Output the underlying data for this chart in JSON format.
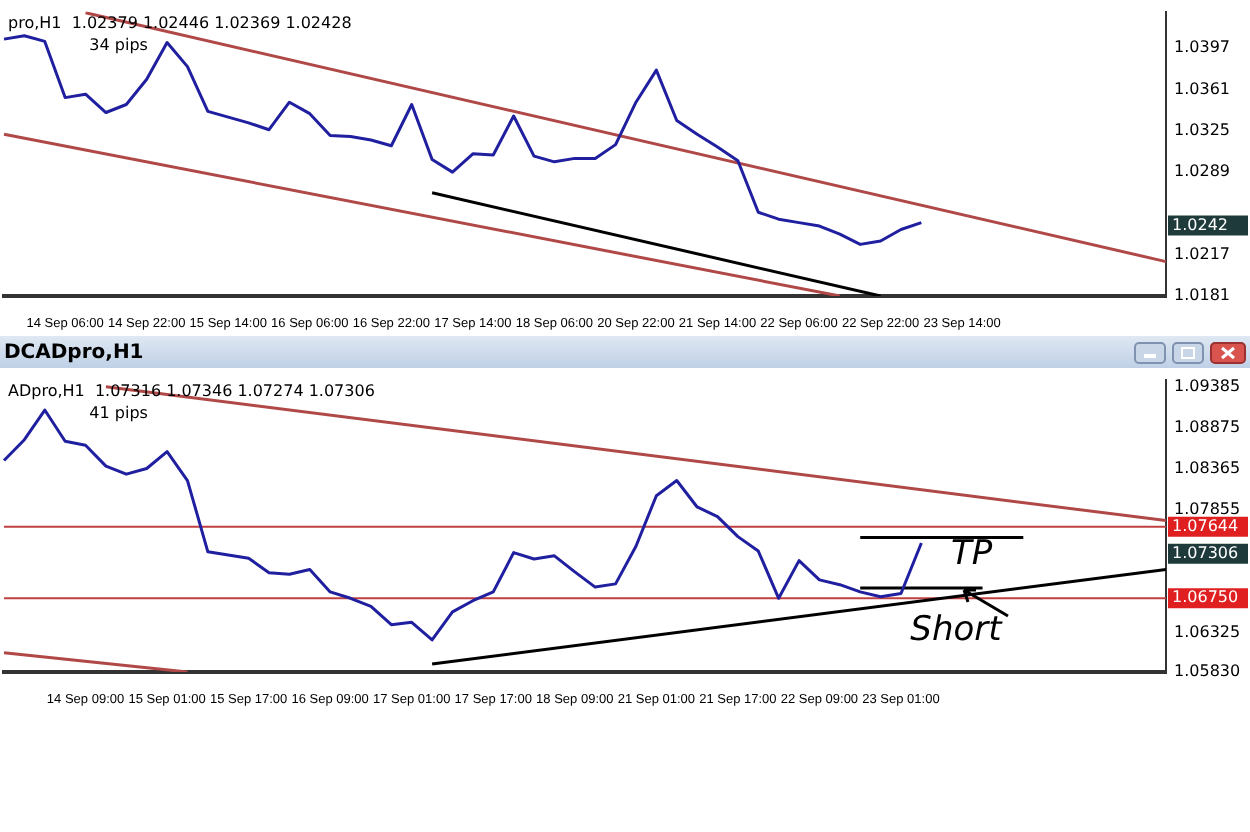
{
  "chart_data": [
    {
      "type": "line",
      "subtitle": "pro,H1  1.02379 1.02446 1.02369 1.02428",
      "marker": "none",
      "categories": [
        null,
        null,
        null,
        "14 Sep 06:00",
        null,
        null,
        null,
        "14 Sep 22:00",
        null,
        null,
        null,
        "15 Sep 14:00",
        null,
        null,
        null,
        "16 Sep 06:00",
        null,
        null,
        null,
        "16 Sep 22:00",
        null,
        null,
        null,
        "17 Sep 14:00",
        null,
        null,
        null,
        "18 Sep 06:00",
        null,
        null,
        null,
        "20 Sep 22:00",
        null,
        null,
        null,
        "21 Sep 14:00",
        null,
        null,
        null,
        "22 Sep 06:00",
        null,
        null,
        null,
        "22 Sep 22:00",
        null,
        null,
        null,
        "23 Sep 14:00",
        null,
        null,
        null,
        null,
        null,
        null,
        null,
        null,
        null,
        null
      ],
      "ylim": [
        1.0181,
        1.0429
      ],
      "yticks": [
        1.0181,
        1.0217,
        1.0289,
        1.0325,
        1.0361,
        1.0397
      ],
      "series": [
        {
          "color": "#1f1fa0",
          "values": [
            1.0405,
            1.0408,
            1.0403,
            1.0354,
            1.0357,
            1.0341,
            1.0348,
            1.037,
            1.0402,
            1.0381,
            1.0342,
            1.0337,
            1.0332,
            1.0326,
            1.035,
            1.034,
            1.0321,
            1.032,
            1.0317,
            1.0312,
            1.0348,
            1.03,
            1.0289,
            1.0305,
            1.0304,
            1.0338,
            1.0303,
            1.0298,
            1.0301,
            1.0301,
            1.0313,
            1.035,
            1.0378,
            1.0334,
            1.0322,
            1.0311,
            1.0299,
            1.0254,
            1.0248,
            1.0245,
            1.0242,
            1.0235,
            1.0226,
            1.0229,
            1.0239,
            1.0245,
            null,
            null,
            null,
            null,
            null,
            null,
            null,
            null,
            null,
            null,
            null,
            null
          ]
        },
        {
          "color": "#b04848",
          "values": [
            null,
            null,
            null,
            null,
            1.0428,
            null,
            null,
            null,
            null,
            null,
            null,
            null,
            null,
            null,
            null,
            null,
            null,
            null,
            null,
            null,
            null,
            null,
            null,
            null,
            null,
            null,
            null,
            null,
            null,
            null,
            null,
            null,
            null,
            null,
            null,
            null,
            null,
            null,
            null,
            null,
            null,
            null,
            null,
            null,
            null,
            null,
            null,
            null,
            null,
            null,
            null,
            null,
            null,
            null,
            null,
            null,
            null,
            1.0211
          ]
        },
        {
          "color": "#b04848",
          "values": [
            1.0322,
            null,
            null,
            null,
            null,
            null,
            null,
            null,
            null,
            null,
            null,
            null,
            null,
            null,
            null,
            null,
            null,
            null,
            null,
            null,
            null,
            null,
            null,
            null,
            null,
            null,
            null,
            null,
            null,
            null,
            null,
            null,
            null,
            null,
            null,
            null,
            null,
            null,
            null,
            null,
            null,
            1.0181,
            null,
            null,
            null,
            null,
            null,
            null,
            null,
            null,
            null,
            null,
            null,
            null,
            null,
            null,
            null,
            null
          ]
        },
        {
          "color": "#000000",
          "values": [
            null,
            null,
            null,
            null,
            null,
            null,
            null,
            null,
            null,
            null,
            null,
            null,
            null,
            null,
            null,
            null,
            null,
            null,
            null,
            null,
            null,
            1.0271,
            null,
            null,
            null,
            null,
            null,
            null,
            null,
            null,
            null,
            null,
            null,
            null,
            null,
            null,
            null,
            null,
            null,
            null,
            null,
            null,
            null,
            1.0181,
            null,
            null,
            null,
            null,
            null,
            null,
            null,
            null,
            null,
            null,
            null,
            null,
            null,
            null
          ]
        }
      ],
      "annotations": [
        "34 pips",
        "1.0242"
      ]
    },
    {
      "type": "line",
      "title": "DCADpro,H1",
      "subtitle": "ADpro,H1  1.07316 1.07346 1.07274 1.07306",
      "marker": "none",
      "categories": [
        null,
        null,
        null,
        null,
        "14 Sep 09:00",
        null,
        null,
        null,
        "15 Sep 01:00",
        null,
        null,
        null,
        "15 Sep 17:00",
        null,
        null,
        null,
        "16 Sep 09:00",
        null,
        null,
        null,
        "17 Sep 01:00",
        null,
        null,
        null,
        "17 Sep 17:00",
        null,
        null,
        null,
        "18 Sep 09:00",
        null,
        null,
        null,
        "21 Sep 01:00",
        null,
        null,
        null,
        "21 Sep 17:00",
        null,
        null,
        null,
        "22 Sep 09:00",
        null,
        null,
        null,
        "23 Sep 01:00",
        null,
        null,
        null,
        null,
        null,
        null,
        null,
        null,
        null,
        null,
        null,
        null,
        null
      ],
      "ylim": [
        1.0583,
        1.0948
      ],
      "yticks": [
        {
          "value": 1.0583,
          "label": "1.05830"
        },
        1.06325,
        1.07855,
        1.08365,
        1.08875,
        1.09385
      ],
      "series": [
        {
          "color": "#1f1fa0",
          "values": [
            1.0847,
            1.0873,
            1.091,
            1.0871,
            1.0866,
            1.084,
            1.083,
            1.0837,
            1.0858,
            1.0822,
            1.0733,
            1.0729,
            1.0725,
            1.0707,
            1.0705,
            1.0711,
            1.0683,
            1.0675,
            1.0665,
            1.0642,
            1.0645,
            1.0623,
            1.0658,
            1.0672,
            1.0683,
            1.0732,
            1.0724,
            1.0728,
            1.0708,
            1.0689,
            1.0693,
            1.074,
            1.0803,
            1.0822,
            1.0789,
            1.0777,
            1.0752,
            1.0734,
            1.0675,
            1.0722,
            1.0698,
            1.0692,
            1.0683,
            1.0677,
            1.0681,
            1.0744,
            null,
            null,
            null,
            null,
            null,
            null,
            null,
            null,
            null,
            null,
            null,
            null
          ]
        },
        {
          "color": "#b04848",
          "values": [
            null,
            null,
            null,
            null,
            null,
            1.0939,
            null,
            null,
            null,
            null,
            null,
            null,
            null,
            null,
            null,
            null,
            null,
            null,
            null,
            null,
            null,
            null,
            null,
            null,
            null,
            null,
            null,
            null,
            null,
            null,
            null,
            null,
            null,
            null,
            null,
            null,
            null,
            null,
            null,
            null,
            null,
            null,
            null,
            null,
            null,
            null,
            null,
            null,
            null,
            null,
            null,
            null,
            null,
            null,
            null,
            null,
            null,
            1.0772
          ]
        },
        {
          "color": "#b04848",
          "values": [
            1.0607,
            null,
            null,
            null,
            null,
            null,
            null,
            null,
            null,
            1.0583,
            null,
            null,
            null,
            null,
            null,
            null,
            null,
            null,
            null,
            null,
            null,
            null,
            null,
            null,
            null,
            null,
            null,
            null,
            null,
            null,
            null,
            null,
            null,
            null,
            null,
            null,
            null,
            null,
            null,
            null,
            null,
            null,
            null,
            null,
            null,
            null,
            null,
            null,
            null,
            null,
            null,
            null,
            null,
            null,
            null,
            null,
            null,
            null
          ]
        },
        {
          "color": "#000000",
          "values": [
            null,
            null,
            null,
            null,
            null,
            null,
            null,
            null,
            null,
            null,
            null,
            null,
            null,
            null,
            null,
            null,
            null,
            null,
            null,
            null,
            null,
            1.0593,
            null,
            null,
            null,
            null,
            null,
            null,
            null,
            null,
            null,
            null,
            null,
            null,
            null,
            null,
            null,
            null,
            null,
            null,
            null,
            null,
            null,
            null,
            null,
            null,
            null,
            null,
            null,
            null,
            null,
            null,
            null,
            null,
            null,
            null,
            null,
            1.0711
          ]
        },
        {
          "color": "#000000",
          "values": [
            null,
            null,
            null,
            null,
            null,
            null,
            null,
            null,
            null,
            null,
            null,
            null,
            null,
            null,
            null,
            null,
            null,
            null,
            null,
            null,
            null,
            null,
            null,
            null,
            null,
            null,
            null,
            null,
            null,
            null,
            null,
            null,
            null,
            null,
            null,
            null,
            null,
            null,
            null,
            null,
            null,
            null,
            1.0751,
            null,
            null,
            null,
            null,
            null,
            null,
            null,
            1.0751,
            null,
            null,
            null,
            null,
            null,
            null,
            null
          ]
        },
        {
          "color": "#000000",
          "values": [
            null,
            null,
            null,
            null,
            null,
            null,
            null,
            null,
            null,
            null,
            null,
            null,
            null,
            null,
            null,
            null,
            null,
            null,
            null,
            null,
            null,
            null,
            null,
            null,
            null,
            null,
            null,
            null,
            null,
            null,
            null,
            null,
            null,
            null,
            null,
            null,
            null,
            null,
            null,
            null,
            null,
            null,
            1.0688,
            null,
            null,
            null,
            null,
            null,
            1.0688,
            null,
            null,
            null,
            null,
            null,
            null,
            null,
            null,
            null
          ]
        }
      ],
      "ref_lines": [
        {
          "axis": "y",
          "value": 1.07644,
          "label": "1.07644",
          "color": "#c04040"
        },
        {
          "axis": "y",
          "value": 1.0675,
          "label": "1.06750",
          "color": "#c04040"
        }
      ],
      "annotations": [
        "41 pips",
        "1.07306",
        "TP",
        "Short"
      ]
    }
  ]
}
